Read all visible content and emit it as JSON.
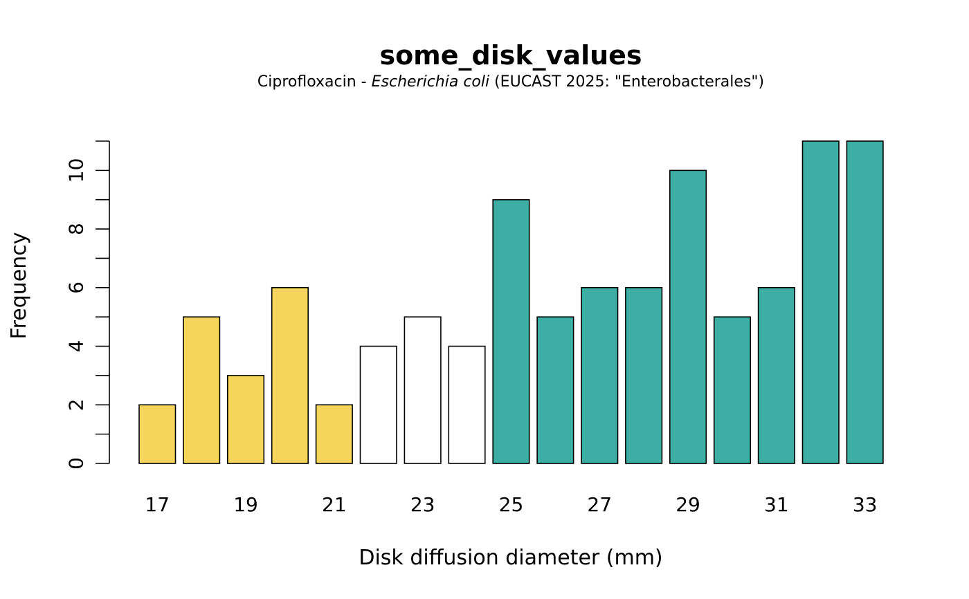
{
  "chart_data": {
    "type": "bar",
    "title": "some_disk_values",
    "subtitle": {
      "prefix": "Ciprofloxacin - ",
      "organism": "Escherichia coli",
      "suffix": " (EUCAST 2025: \"Enterobacterales\")"
    },
    "xlabel": "Disk diffusion diameter (mm)",
    "ylabel": "Frequency",
    "ylim": [
      0,
      11
    ],
    "y_ticks": [
      0,
      2,
      4,
      6,
      8,
      10
    ],
    "y_minor_ticks": [
      1,
      3,
      5,
      7,
      9,
      11
    ],
    "x_tick_labels": [
      "17",
      "19",
      "21",
      "23",
      "25",
      "27",
      "29",
      "31",
      "33"
    ],
    "grid": false,
    "categories": [
      17,
      18,
      19,
      20,
      21,
      22,
      23,
      24,
      25,
      26,
      27,
      28,
      29,
      30,
      31,
      32,
      33
    ],
    "values": [
      2,
      5,
      3,
      6,
      2,
      4,
      5,
      4,
      9,
      5,
      6,
      6,
      10,
      5,
      6,
      11,
      11
    ],
    "bar_colors": [
      "#F5D55C",
      "#F5D55C",
      "#F5D55C",
      "#F5D55C",
      "#F5D55C",
      "#FFFFFF",
      "#FFFFFF",
      "#FFFFFF",
      "#3DAEA4",
      "#3DAEA4",
      "#3DAEA4",
      "#3DAEA4",
      "#3DAEA4",
      "#3DAEA4",
      "#3DAEA4",
      "#3DAEA4",
      "#3DAEA4"
    ]
  }
}
